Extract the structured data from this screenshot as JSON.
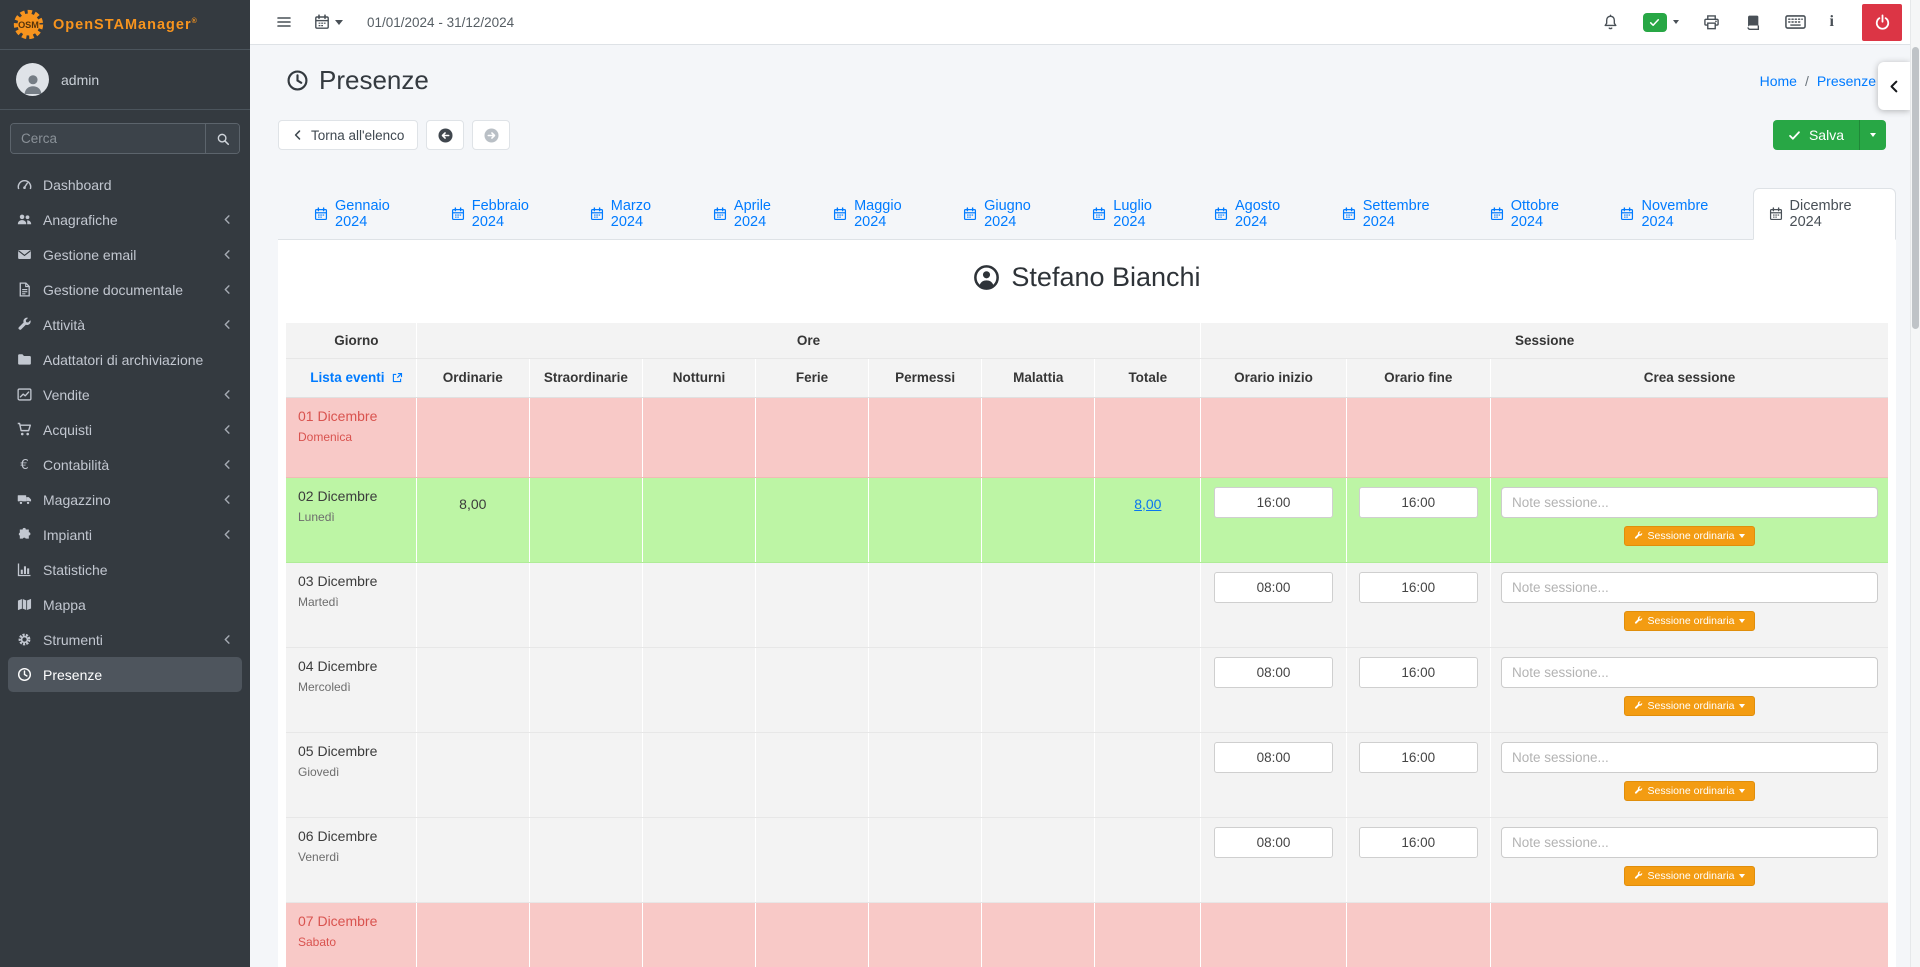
{
  "topbar": {
    "date_range": "01/01/2024 - 31/12/2024"
  },
  "sidebar": {
    "brand": "OpenSTAManager",
    "brand_mark": "®",
    "brand_badge": "OSM",
    "user": "admin",
    "search_placeholder": "Cerca",
    "items": [
      {
        "label": "Dashboard",
        "icon": "tachometer",
        "submenu": false,
        "active": false
      },
      {
        "label": "Anagrafiche",
        "icon": "users",
        "submenu": true,
        "active": false
      },
      {
        "label": "Gestione email",
        "icon": "envelope",
        "submenu": true,
        "active": false
      },
      {
        "label": "Gestione documentale",
        "icon": "file",
        "submenu": true,
        "active": false
      },
      {
        "label": "Attività",
        "icon": "wrench",
        "submenu": true,
        "active": false
      },
      {
        "label": "Adattatori di archiviazione",
        "icon": "folder",
        "submenu": false,
        "active": false
      },
      {
        "label": "Vendite",
        "icon": "chart-line",
        "submenu": true,
        "active": false
      },
      {
        "label": "Acquisti",
        "icon": "cart",
        "submenu": true,
        "active": false
      },
      {
        "label": "Contabilità",
        "icon": "euro",
        "submenu": true,
        "active": false
      },
      {
        "label": "Magazzino",
        "icon": "truck",
        "submenu": true,
        "active": false
      },
      {
        "label": "Impianti",
        "icon": "puzzle",
        "submenu": true,
        "active": false
      },
      {
        "label": "Statistiche",
        "icon": "chart-bar",
        "submenu": false,
        "active": false
      },
      {
        "label": "Mappa",
        "icon": "map",
        "submenu": false,
        "active": false
      },
      {
        "label": "Strumenti",
        "icon": "gear",
        "submenu": true,
        "active": false
      },
      {
        "label": "Presenze",
        "icon": "clock",
        "submenu": false,
        "active": true
      }
    ]
  },
  "page": {
    "title": "Presenze",
    "breadcrumb": {
      "home": "Home",
      "separator": "/",
      "current": "Presenze"
    }
  },
  "toolbar": {
    "back_label": "Torna all'elenco",
    "save_label": "Salva"
  },
  "tabs": {
    "items": [
      {
        "label": "Gennaio 2024",
        "active": false
      },
      {
        "label": "Febbraio 2024",
        "active": false
      },
      {
        "label": "Marzo 2024",
        "active": false
      },
      {
        "label": "Aprile 2024",
        "active": false
      },
      {
        "label": "Maggio 2024",
        "active": false
      },
      {
        "label": "Giugno 2024",
        "active": false
      },
      {
        "label": "Luglio 2024",
        "active": false
      },
      {
        "label": "Agosto 2024",
        "active": false
      },
      {
        "label": "Settembre 2024",
        "active": false
      },
      {
        "label": "Ottobre 2024",
        "active": false
      },
      {
        "label": "Novembre 2024",
        "active": false
      },
      {
        "label": "Dicembre 2024",
        "active": true
      }
    ]
  },
  "employee": {
    "name": "Stefano Bianchi"
  },
  "table": {
    "headers": {
      "giorno": "Giorno",
      "ore": "Ore",
      "sessione": "Sessione"
    },
    "list_events_label": "Lista eventi",
    "hour_columns": [
      "Ordinarie",
      "Straordinarie",
      "Notturni",
      "Ferie",
      "Permessi",
      "Malattia",
      "Totale"
    ],
    "session_columns": [
      "Orario inizio",
      "Orario fine",
      "Crea sessione"
    ],
    "note_placeholder": "Note sessione...",
    "session_button_label": "Sessione ordinaria",
    "rows": [
      {
        "date": "01 Dicembre",
        "day": "Domenica",
        "kind": "weekend"
      },
      {
        "date": "02 Dicembre",
        "day": "Lunedì",
        "kind": "filled",
        "hours": {
          "Ordinarie": "8,00"
        },
        "totale": "8,00",
        "session": {
          "start": "16:00",
          "end": "16:00"
        }
      },
      {
        "date": "03 Dicembre",
        "day": "Martedì",
        "kind": "workday",
        "session": {
          "start": "08:00",
          "end": "16:00"
        }
      },
      {
        "date": "04 Dicembre",
        "day": "Mercoledì",
        "kind": "workday",
        "session": {
          "start": "08:00",
          "end": "16:00"
        }
      },
      {
        "date": "05 Dicembre",
        "day": "Giovedì",
        "kind": "workday",
        "session": {
          "start": "08:00",
          "end": "16:00"
        }
      },
      {
        "date": "06 Dicembre",
        "day": "Venerdì",
        "kind": "workday",
        "session": {
          "start": "08:00",
          "end": "16:00"
        }
      },
      {
        "date": "07 Dicembre",
        "day": "Sabato",
        "kind": "weekend"
      }
    ]
  },
  "colors": {
    "accent": "#007bff",
    "success": "#28a745",
    "warning": "#f39c12",
    "danger": "#dc3545",
    "brand_orange": "#f7941e",
    "sidebar_bg": "#343a40",
    "content_bg": "#f4f6f9",
    "weekend_bg": "#f8c9c7",
    "weekend_text": "#d9534f",
    "filled_bg": "#bdf5a5"
  }
}
